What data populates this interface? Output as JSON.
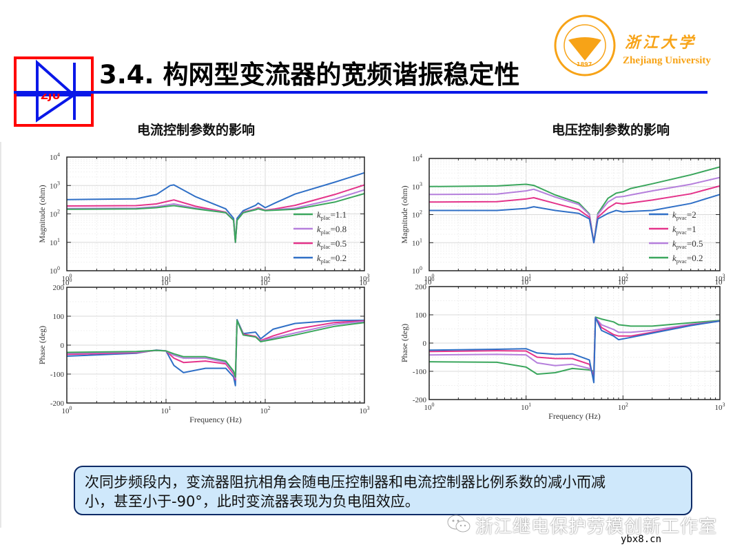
{
  "header": {
    "title": "3.4. 构网型变流器的宽频谐振稳定性",
    "logo_text": "ZJU",
    "university_cn": "浙江大学",
    "university_en": "Zhejiang University",
    "seal_year": "1897",
    "seal_text": "ZHEJIANG UNIVERSITY"
  },
  "sections": {
    "left_title": "电流控制参数的影响",
    "right_title": "电压控制参数的影响"
  },
  "note": {
    "line1": "次同步频段内，变流器阻抗相角会随电压控制器和电流控制器比例系数的减小而减",
    "line2": "小，甚至小于-90°，此时变流器表现为负电阻效应。"
  },
  "watermark": {
    "text": "浙江继电保护劳模创新工作室",
    "site": "ybx8.cn"
  },
  "colors": {
    "green": "#3aa65c",
    "purple": "#b57fdc",
    "magenta": "#e4338a",
    "blue": "#2f6fc6",
    "title_rule": "#0a18e8",
    "logo_red": "#ff0000",
    "brand_orange": "#f7a317",
    "note_bg": "#cfe8fb",
    "note_border": "#0d2a66"
  },
  "chart_data": [
    {
      "type": "line",
      "title": "电流控制参数的影响 — Magnitude",
      "xlabel": "",
      "ylabel": "Magnitude (ohm)",
      "xscale": "log",
      "yscale": "log",
      "xlim": [
        1,
        1000
      ],
      "ylim": [
        1,
        10000
      ],
      "x_ticks": [
        "10^0",
        "10^1",
        "10^2",
        "10^3"
      ],
      "y_ticks": [
        "10^0",
        "10^1",
        "10^2",
        "10^3",
        "10^4"
      ],
      "grid": true,
      "legend_position": "lower right",
      "x": [
        1,
        5,
        8,
        11,
        12,
        20,
        40,
        48,
        50,
        52,
        60,
        80,
        85,
        100,
        125,
        200,
        500,
        1000
      ],
      "series": [
        {
          "name": "k_pIac=1.1",
          "color": "#3aa65c",
          "values": [
            145,
            150,
            165,
            190,
            195,
            150,
            110,
            60,
            10,
            60,
            110,
            140,
            150,
            130,
            135,
            145,
            260,
            520
          ]
        },
        {
          "name": "k_pIac=0.8",
          "color": "#b57fdc",
          "values": [
            155,
            160,
            180,
            215,
            225,
            160,
            112,
            60,
            10,
            60,
            112,
            145,
            155,
            132,
            140,
            160,
            330,
            700
          ]
        },
        {
          "name": "k_pIac=0.5",
          "color": "#e4338a",
          "values": [
            190,
            195,
            225,
            290,
            310,
            185,
            115,
            60,
            10,
            60,
            115,
            150,
            165,
            135,
            150,
            200,
            480,
            1050
          ]
        },
        {
          "name": "k_pIac=0.2",
          "color": "#2f6fc6",
          "values": [
            320,
            340,
            480,
            1000,
            1050,
            400,
            150,
            70,
            10,
            70,
            130,
            200,
            240,
            165,
            240,
            500,
            1300,
            2800
          ]
        }
      ]
    },
    {
      "type": "line",
      "title": "电流控制参数的影响 — Phase",
      "xlabel": "Frequency (Hz)",
      "ylabel": "Phase (deg)",
      "xscale": "log",
      "xlim": [
        1,
        1000
      ],
      "ylim": [
        -200,
        200
      ],
      "x_ticks": [
        "10^0",
        "10^1",
        "10^2",
        "10^3"
      ],
      "y_ticks": [
        "-200",
        "-100",
        "0",
        "100",
        "200"
      ],
      "grid": true,
      "x": [
        1,
        5,
        8,
        10,
        12,
        15,
        25,
        40,
        48,
        50,
        52,
        60,
        80,
        90,
        120,
        200,
        500,
        1000
      ],
      "series": [
        {
          "name": "k_pIac=1.1",
          "color": "#3aa65c",
          "values": [
            -25,
            -22,
            -18,
            -20,
            -30,
            -40,
            -40,
            -55,
            -90,
            -110,
            85,
            35,
            28,
            12,
            20,
            35,
            65,
            78
          ]
        },
        {
          "name": "k_pIac=0.8",
          "color": "#b57fdc",
          "values": [
            -28,
            -24,
            -18,
            -20,
            -35,
            -45,
            -45,
            -60,
            -95,
            -115,
            85,
            35,
            28,
            14,
            25,
            42,
            72,
            82
          ]
        },
        {
          "name": "k_pIac=0.5",
          "color": "#e4338a",
          "values": [
            -32,
            -26,
            -18,
            -20,
            -45,
            -60,
            -55,
            -65,
            -100,
            -120,
            85,
            38,
            30,
            16,
            32,
            55,
            78,
            84
          ]
        },
        {
          "name": "k_pIac=0.2",
          "color": "#2f6fc6",
          "values": [
            -38,
            -28,
            -17,
            -20,
            -70,
            -95,
            -80,
            -80,
            -110,
            -140,
            88,
            40,
            45,
            22,
            55,
            75,
            85,
            86
          ]
        }
      ]
    },
    {
      "type": "line",
      "title": "电压控制参数的影响 — Magnitude",
      "xlabel": "",
      "ylabel": "Magnitude (ohm)",
      "xscale": "log",
      "yscale": "log",
      "xlim": [
        1,
        1000
      ],
      "ylim": [
        1,
        10000
      ],
      "x_ticks": [
        "10^0",
        "10^1",
        "10^2",
        "10^3"
      ],
      "y_ticks": [
        "10^0",
        "10^1",
        "10^2",
        "10^3",
        "10^4"
      ],
      "grid": true,
      "legend_position": "lower right",
      "x": [
        1,
        5,
        10,
        12,
        20,
        35,
        45,
        50,
        55,
        70,
        85,
        100,
        120,
        200,
        500,
        1000
      ],
      "series": [
        {
          "name": "k_pvac=2",
          "color": "#2f6fc6",
          "values": [
            140,
            140,
            165,
            190,
            140,
            110,
            70,
            10,
            70,
            110,
            140,
            125,
            130,
            140,
            250,
            520
          ]
        },
        {
          "name": "k_pvac=1",
          "color": "#e4338a",
          "values": [
            280,
            290,
            360,
            400,
            250,
            150,
            80,
            10,
            80,
            170,
            260,
            240,
            260,
            330,
            550,
            1050
          ]
        },
        {
          "name": "k_pvac=0.5",
          "color": "#b57fdc",
          "values": [
            520,
            540,
            700,
            800,
            420,
            230,
            100,
            10,
            100,
            280,
            420,
            440,
            500,
            700,
            1200,
            2100
          ]
        },
        {
          "name": "k_pvac=0.2",
          "color": "#3aa65c",
          "values": [
            1000,
            1050,
            1200,
            1100,
            500,
            260,
            105,
            10,
            110,
            380,
            580,
            650,
            850,
            1250,
            2600,
            5000
          ]
        }
      ]
    },
    {
      "type": "line",
      "title": "电压控制参数的影响 — Phase",
      "xlabel": "Frequency (Hz)",
      "ylabel": "Phase (deg)",
      "xscale": "log",
      "xlim": [
        1,
        1000
      ],
      "ylim": [
        -200,
        200
      ],
      "x_ticks": [
        "10^0",
        "10^1",
        "10^2",
        "10^3"
      ],
      "y_ticks": [
        "-200",
        "-100",
        "0",
        "100",
        "200"
      ],
      "grid": true,
      "x": [
        1,
        5,
        10,
        13,
        20,
        30,
        45,
        50,
        52,
        60,
        80,
        90,
        120,
        200,
        500,
        1000
      ],
      "series": [
        {
          "name": "k_pvac=2",
          "color": "#2f6fc6",
          "values": [
            -25,
            -22,
            -20,
            -35,
            -40,
            -38,
            -60,
            -140,
            90,
            45,
            25,
            12,
            20,
            35,
            62,
            78
          ]
        },
        {
          "name": "k_pvac=1",
          "color": "#e4338a",
          "values": [
            -30,
            -27,
            -28,
            -50,
            -55,
            -55,
            -75,
            -120,
            90,
            55,
            30,
            25,
            25,
            38,
            64,
            78
          ]
        },
        {
          "name": "k_pvac=0.5",
          "color": "#b57fdc",
          "values": [
            -42,
            -40,
            -42,
            -70,
            -80,
            -75,
            -90,
            -110,
            90,
            65,
            48,
            38,
            38,
            45,
            66,
            78
          ]
        },
        {
          "name": "k_pvac=0.2",
          "color": "#3aa65c",
          "values": [
            -66,
            -68,
            -85,
            -110,
            -105,
            -90,
            -95,
            -100,
            92,
            85,
            75,
            65,
            60,
            60,
            72,
            80
          ]
        }
      ]
    }
  ]
}
